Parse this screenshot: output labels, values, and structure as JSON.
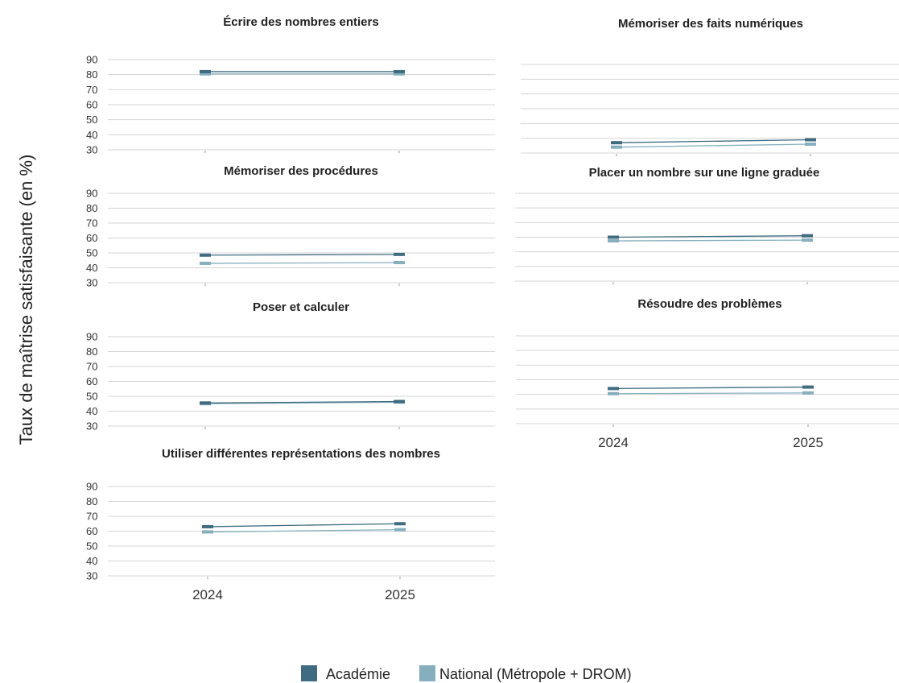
{
  "ylabel": "Taux de maîtrise satisfaisante (en %)",
  "colors": {
    "academie": "#3f6c80",
    "national": "#86afbd",
    "grid": "#d4d4d4"
  },
  "chart_data": {
    "type": "line",
    "x": [
      "2024",
      "2025"
    ],
    "ylim": [
      30,
      90
    ],
    "yticks": [
      30,
      40,
      50,
      60,
      70,
      80,
      90
    ],
    "grid": true,
    "legend_position": "bottom-center",
    "series_names": [
      "Académie",
      "National (Métropole + DROM)"
    ],
    "panels": [
      {
        "title": "Écrire des nombres entiers",
        "series": [
          {
            "name": "Académie",
            "values": [
              82,
              82
            ]
          },
          {
            "name": "National (Métropole + DROM)",
            "values": [
              80.5,
              80.5
            ]
          }
        ]
      },
      {
        "title": "Mémoriser des faits numériques",
        "series": [
          {
            "name": "Académie",
            "values": [
              37,
              39
            ]
          },
          {
            "name": "National (Métropole + DROM)",
            "values": [
              34,
              36
            ]
          }
        ]
      },
      {
        "title": "Mémoriser des procédures",
        "series": [
          {
            "name": "Académie",
            "values": [
              48.5,
              49
            ]
          },
          {
            "name": "National (Métropole + DROM)",
            "values": [
              43,
              43.5
            ]
          }
        ]
      },
      {
        "title": "Placer un nombre sur une ligne graduée",
        "series": [
          {
            "name": "Académie",
            "values": [
              60,
              61
            ]
          },
          {
            "name": "National (Métropole + DROM)",
            "values": [
              57.5,
              58
            ]
          }
        ]
      },
      {
        "title": "Poser et calculer",
        "series": [
          {
            "name": "Académie",
            "values": [
              45.5,
              46.5
            ]
          },
          {
            "name": "National (Métropole + DROM)",
            "values": [
              45,
              46
            ]
          }
        ]
      },
      {
        "title": "Résoudre des problèmes",
        "series": [
          {
            "name": "Académie",
            "values": [
              54,
              55
            ]
          },
          {
            "name": "National (Métropole + DROM)",
            "values": [
              50.5,
              51
            ]
          }
        ]
      },
      {
        "title": "Utiliser différentes représentations des nombres",
        "series": [
          {
            "name": "Académie",
            "values": [
              63,
              65
            ]
          },
          {
            "name": "National (Métropole + DROM)",
            "values": [
              59.5,
              61
            ]
          }
        ]
      }
    ]
  }
}
